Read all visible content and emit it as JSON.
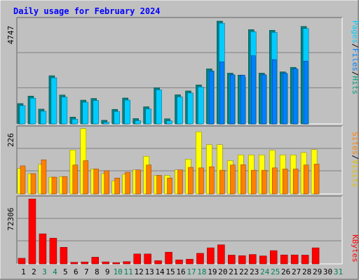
{
  "chart_data": [
    {
      "type": "bar",
      "title": "Daily usage for February 2024",
      "categories": [
        "1",
        "2",
        "3",
        "4",
        "5",
        "6",
        "7",
        "8",
        "9",
        "10",
        "11",
        "12",
        "13",
        "14",
        "15",
        "16",
        "17",
        "18",
        "19",
        "20",
        "21",
        "22",
        "23",
        "24",
        "25",
        "26",
        "27",
        "28",
        "29",
        "30",
        "31"
      ],
      "weekend_days": [
        "3",
        "4",
        "10",
        "11",
        "17",
        "18",
        "24",
        "25",
        "31"
      ],
      "ymax_label": "4747",
      "ylabels": [
        "Pages",
        "Files",
        "Hits"
      ],
      "series": [
        {
          "name": "Pages",
          "values": [
            0,
            0,
            0,
            0,
            0,
            0,
            0,
            0,
            0,
            0,
            0,
            0,
            0,
            0,
            0,
            0,
            0,
            0,
            2450,
            2900,
            2300,
            2280,
            3180,
            2300,
            3000,
            2380,
            2580,
            2930,
            0,
            0,
            0
          ]
        },
        {
          "name": "Files",
          "values": [
            950,
            1300,
            680,
            2250,
            1350,
            320,
            1110,
            1190,
            170,
            680,
            1210,
            250,
            800,
            1690,
            240,
            1360,
            1540,
            1820,
            2570,
            4800,
            2370,
            2280,
            4400,
            2370,
            4370,
            2430,
            2640,
            4550,
            0,
            0,
            0
          ]
        },
        {
          "name": "Hits",
          "values": [
            950,
            1300,
            690,
            2250,
            1350,
            320,
            1110,
            1190,
            170,
            680,
            1210,
            250,
            800,
            1690,
            240,
            1360,
            1540,
            1820,
            2570,
            4800,
            2370,
            2280,
            4400,
            2370,
            4370,
            2430,
            2640,
            4550,
            0,
            0,
            0
          ]
        }
      ]
    },
    {
      "type": "bar",
      "ymax_label": "226",
      "ylabels": [
        "Sites",
        "Visits"
      ],
      "series": [
        {
          "name": "Visits",
          "values": [
            88,
            70,
            102,
            58,
            60,
            152,
            226,
            86,
            70,
            45,
            68,
            83,
            130,
            64,
            64,
            83,
            120,
            215,
            170,
            170,
            115,
            135,
            135,
            135,
            151,
            135,
            135,
            143,
            153,
            0,
            0
          ]
        },
        {
          "name": "Sites",
          "values": [
            97,
            70,
            118,
            58,
            60,
            100,
            115,
            86,
            80,
            55,
            75,
            83,
            100,
            64,
            55,
            83,
            92,
            90,
            94,
            82,
            100,
            101,
            82,
            82,
            90,
            86,
            86,
            100,
            103,
            0,
            0
          ]
        }
      ]
    },
    {
      "type": "bar",
      "ymax_label": "72306",
      "ylabels": [
        "KBytes"
      ],
      "series": [
        {
          "name": "KBytes",
          "values": [
            6300,
            72306,
            33500,
            28700,
            18500,
            1800,
            2200,
            7500,
            2300,
            1500,
            2600,
            11100,
            11100,
            3600,
            13100,
            4500,
            5300,
            11800,
            17900,
            21300,
            9800,
            9200,
            10500,
            8900,
            14800,
            10000,
            10000,
            9800,
            17900,
            0,
            0
          ]
        }
      ]
    }
  ],
  "colors": {
    "background": "#c0c0c0",
    "panel": "#c0c0c0",
    "grid": "#808080",
    "title": "#0000ff",
    "hits": "#00ccff",
    "hits_shadow": "#008080",
    "files": "#0080ff",
    "files_shadow": "#005080",
    "pages": "#00c0ff",
    "visits": "#ffff00",
    "sites": "#ff8000",
    "kbytes": "#ff0000",
    "weekday_label": "#000000",
    "weekend_label": "#00805c"
  }
}
